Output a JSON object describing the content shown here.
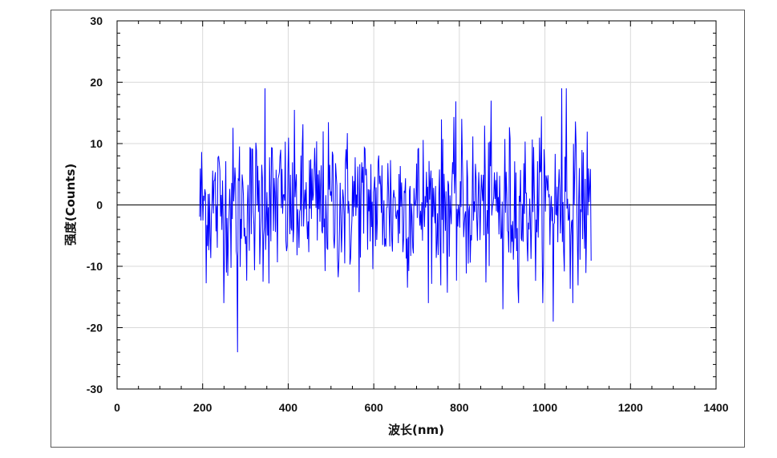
{
  "chart_data": {
    "type": "line",
    "title": "",
    "xlabel": "波长(nm)",
    "ylabel": "强度(Counts)",
    "xlim": [
      0,
      1400
    ],
    "ylim": [
      -30,
      30
    ],
    "xticks": [
      0,
      200,
      400,
      600,
      800,
      1000,
      1200,
      1400
    ],
    "yticks": [
      -30,
      -20,
      -10,
      0,
      10,
      20,
      30
    ],
    "xtick_labels": [
      "0",
      "200",
      "400",
      "600",
      "800",
      "1000",
      "1200",
      "1400"
    ],
    "ytick_labels": [
      "-30",
      "-20",
      "-10",
      "0",
      "10",
      "20",
      "30"
    ],
    "grid": true,
    "zero_line": true,
    "series": [
      {
        "color": "#0000ff",
        "x_range": [
          193,
          1108
        ],
        "point_count": 600,
        "distribution": "random noise around 0 (mostly within ±10 counts)",
        "notable_points": [
          {
            "x": 282,
            "y": -24
          },
          {
            "x": 345,
            "y": 19
          },
          {
            "x": 1040,
            "y": 19
          },
          {
            "x": 1050,
            "y": 19
          },
          {
            "x": 1020,
            "y": -19
          },
          {
            "x": 902,
            "y": -17
          }
        ]
      }
    ]
  }
}
